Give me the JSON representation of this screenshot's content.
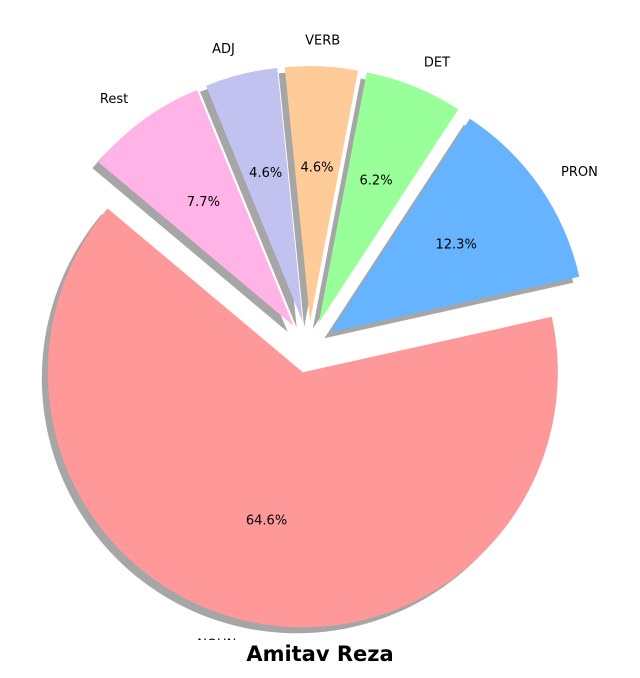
{
  "chart_data": {
    "type": "pie",
    "title": "Amitav Reza",
    "categories": [
      "NOUN",
      "PRON",
      "DET",
      "VERB",
      "ADJ",
      "Rest"
    ],
    "values": [
      64.6,
      12.3,
      6.2,
      4.6,
      4.6,
      7.7
    ],
    "value_labels": [
      "64.6%",
      "12.3%",
      "6.2%",
      "4.6%",
      "4.6%",
      "7.7%"
    ],
    "colors": [
      "#ff9999",
      "#66b3ff",
      "#99ff99",
      "#ffcc99",
      "#c2c2f0",
      "#ffb3e6"
    ],
    "exploded": [
      true,
      true,
      true,
      true,
      true,
      true
    ],
    "shadow": true,
    "start_angle_deg": 140,
    "direction": "counterclockwise",
    "legend": "none"
  }
}
